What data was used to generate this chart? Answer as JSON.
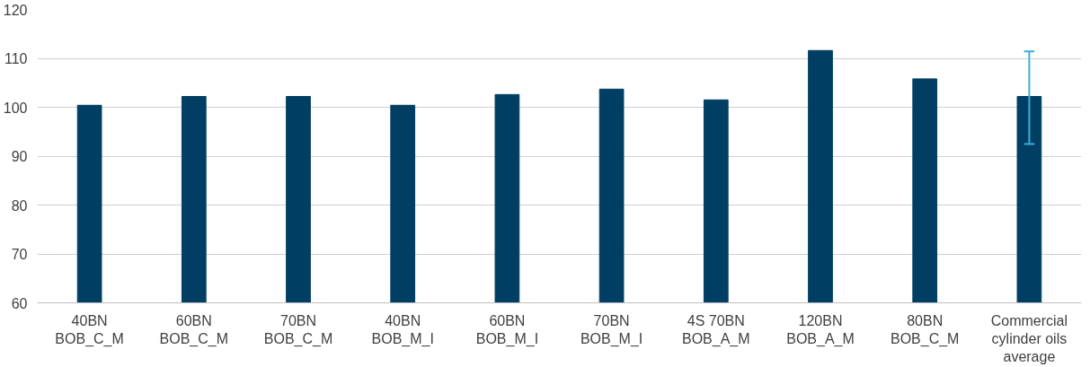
{
  "chart_data": {
    "type": "bar",
    "categories": [
      "40BN\nBOB_C_M",
      "60BN\nBOB_C_M",
      "70BN\nBOB_C_M",
      "40BN\nBOB_M_I",
      "60BN\nBOB_M_I",
      "70BN\nBOB_M_I",
      "4S 70BN\nBOB_A_M",
      "120BN\nBOB_A_M",
      "80BN\nBOB_C_M",
      "Commercial\ncylinder oils\naverage"
    ],
    "values": [
      100.4,
      102.2,
      102.2,
      100.4,
      102.6,
      103.7,
      101.5,
      111.6,
      105.8,
      102.2
    ],
    "errors": [
      null,
      null,
      null,
      null,
      null,
      null,
      null,
      null,
      null,
      [
        92.5,
        111.4
      ]
    ],
    "color": "#003f63",
    "ylim": [
      60,
      120
    ],
    "yticks": [
      60,
      70,
      80,
      90,
      100,
      110,
      120
    ],
    "grid": "y"
  }
}
